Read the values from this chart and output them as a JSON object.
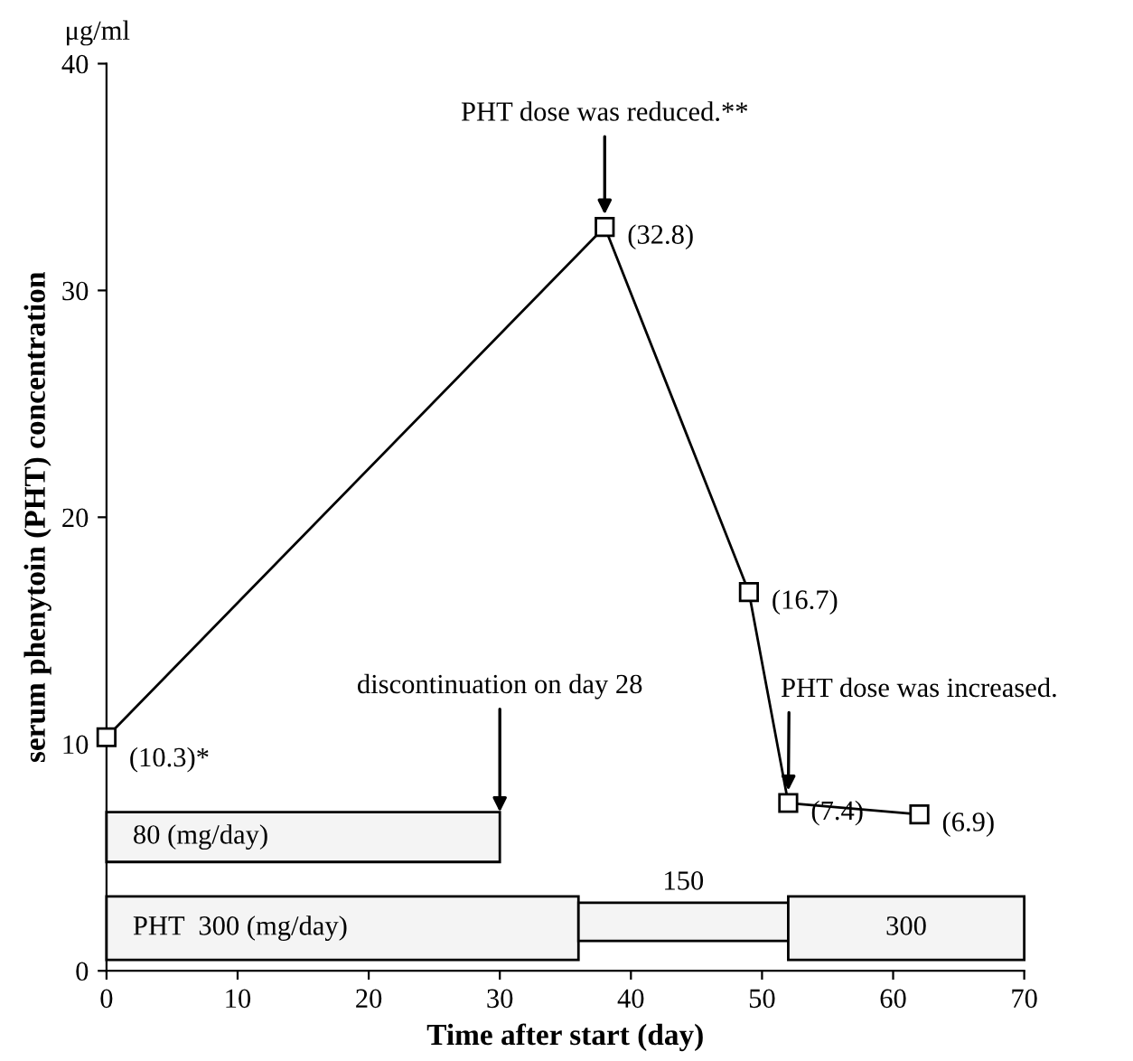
{
  "chart_data": {
    "type": "line",
    "xlabel": "Time after start (day)",
    "ylabel": "serum phenytoin (PHT) concentration",
    "x": [
      0,
      38,
      49,
      52,
      62
    ],
    "series": [
      {
        "color": "#000000",
        "values": [
          10.3,
          32.8,
          16.7,
          7.4,
          6.9
        ],
        "value_labels": [
          "(10.3)*",
          "(32.8)",
          "(16.7)",
          "(7.4)",
          "(6.9)"
        ]
      }
    ],
    "marker": "square",
    "line_style": "solid",
    "xlim": [
      0,
      70
    ],
    "xticks": [
      0,
      10,
      20,
      30,
      40,
      50,
      60,
      70
    ],
    "ylim": [
      0,
      40
    ],
    "yticks": [
      0,
      10,
      20,
      30,
      40
    ],
    "grid": false,
    "annotations": [
      "μg/ml",
      {
        "text": "PHT dose was reduced.**",
        "x": 38,
        "y": 32.8
      },
      {
        "text": "PHT dose was increased.",
        "x": 52,
        "y": 7.4
      },
      {
        "text": "discontinuation on day 28",
        "x": 30,
        "y": 7
      }
    ],
    "bands": [
      {
        "axis": "x",
        "from": 0,
        "to": 30,
        "label": "80 (mg/day)",
        "color": "#000000"
      },
      {
        "axis": "x",
        "from": 0,
        "to": 36,
        "label": "PHT  300 (mg/day)",
        "color": "#000000"
      },
      {
        "axis": "x",
        "from": 36,
        "to": 52,
        "label": "150",
        "color": "#000000"
      },
      {
        "axis": "x",
        "from": 52,
        "to": 70,
        "label": "300",
        "color": "#000000"
      }
    ]
  }
}
